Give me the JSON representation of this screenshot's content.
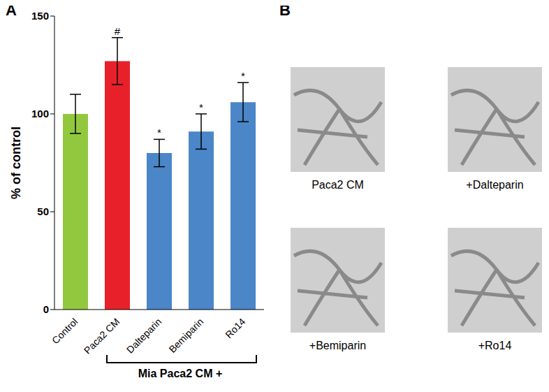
{
  "chart_data": {
    "type": "bar",
    "panel_label": "A",
    "ylabel": "% of control",
    "categories": [
      "Control",
      "Paca2 CM",
      "Dalteparin",
      "Bemiparin",
      "Ro14"
    ],
    "values": [
      100,
      127,
      80,
      91,
      106
    ],
    "errors": [
      10,
      12,
      7,
      9,
      10
    ],
    "significance": [
      null,
      "#",
      "*",
      "*",
      "*"
    ],
    "colors": [
      "#92c83e",
      "#e8202a",
      "#4a86c8",
      "#4a86c8",
      "#4a86c8"
    ],
    "ylim": [
      0,
      150
    ],
    "yticks": [
      0,
      50,
      100,
      150
    ],
    "group_label": "Mia Paca2 CM +"
  },
  "panel_b": {
    "panel_label": "B",
    "images": [
      {
        "caption": "Paca2 CM"
      },
      {
        "caption": "+Dalteparin"
      },
      {
        "caption": "+Bemiparin"
      },
      {
        "caption": "+Ro14"
      }
    ]
  }
}
